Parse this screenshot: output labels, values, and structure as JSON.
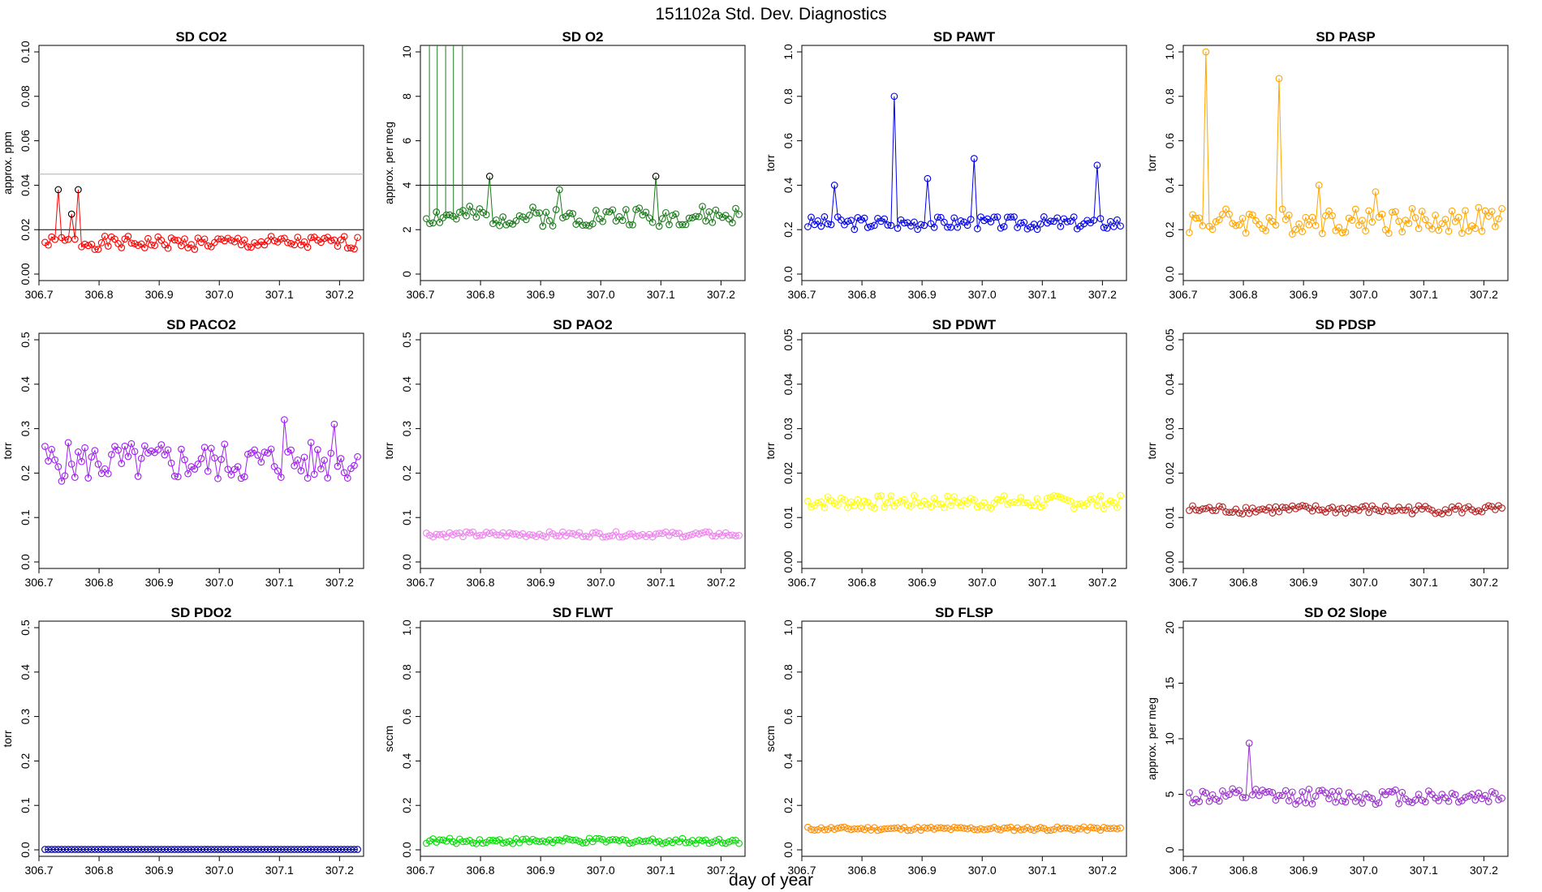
{
  "figure_title": "151102a   Std. Dev. Diagnostics",
  "common_xlabel": "day of year",
  "chart_data": [
    {
      "type": "line",
      "title": "SD CO2",
      "ylabel": "approx. ppm",
      "color": "#ff0000",
      "xlim": [
        306.7,
        307.24
      ],
      "ylim": [
        0,
        0.1
      ],
      "yticks": [
        "0.00",
        "0.02",
        "0.04",
        "0.06",
        "0.08",
        "0.10"
      ],
      "xticks": [
        "306.7",
        "306.8",
        "306.9",
        "307.0",
        "307.1",
        "307.2"
      ],
      "hlines": [
        {
          "y": 0.02,
          "color": "#000000"
        },
        {
          "y": 0.045,
          "color": "#b0b0b0"
        }
      ],
      "base": 0.014,
      "amp": 0.003,
      "seed": 1,
      "spikes": [
        {
          "x": 306.73,
          "y": 0.038,
          "color": "#000000"
        },
        {
          "x": 306.755,
          "y": 0.027,
          "color": "#000000"
        },
        {
          "x": 306.768,
          "y": 0.038,
          "color": "#000000"
        }
      ]
    },
    {
      "type": "line",
      "title": "SD O2",
      "ylabel": "approx. per meg",
      "color": "#1a7a1a",
      "xlim": [
        306.7,
        307.24
      ],
      "ylim": [
        0,
        10
      ],
      "yticks": [
        "0",
        "2",
        "4",
        "6",
        "8",
        "10"
      ],
      "xticks": [
        "306.7",
        "306.8",
        "306.9",
        "307.0",
        "307.1",
        "307.2"
      ],
      "hlines": [
        {
          "y": 4,
          "color": "#000000"
        }
      ],
      "base": 2.6,
      "amp": 0.45,
      "seed": 2,
      "offscale": [
        306.715,
        306.728,
        306.742,
        306.755,
        306.77
      ],
      "spikes": [
        {
          "x": 306.813,
          "y": 4.4,
          "color": "#000000"
        },
        {
          "x": 306.93,
          "y": 3.8,
          "color": "#1a7a1a"
        },
        {
          "x": 307.09,
          "y": 4.4,
          "color": "#000000"
        }
      ]
    },
    {
      "type": "line",
      "title": "SD PAWT",
      "ylabel": "torr",
      "color": "#0000ee",
      "xlim": [
        306.7,
        307.24
      ],
      "ylim": [
        0,
        1
      ],
      "yticks": [
        "0.0",
        "0.2",
        "0.4",
        "0.6",
        "0.8",
        "1.0"
      ],
      "xticks": [
        "306.7",
        "306.8",
        "306.9",
        "307.0",
        "307.1",
        "307.2"
      ],
      "hlines": [],
      "base": 0.23,
      "amp": 0.03,
      "seed": 3,
      "spikes": [
        {
          "x": 306.752,
          "y": 0.4
        },
        {
          "x": 306.855,
          "y": 0.8
        },
        {
          "x": 306.91,
          "y": 0.43
        },
        {
          "x": 306.987,
          "y": 0.52
        },
        {
          "x": 307.192,
          "y": 0.49
        }
      ]
    },
    {
      "type": "line",
      "title": "SD PASP",
      "ylabel": "torr",
      "color": "#ffa500",
      "xlim": [
        306.7,
        307.24
      ],
      "ylim": [
        0,
        1
      ],
      "yticks": [
        "0.0",
        "0.2",
        "0.4",
        "0.6",
        "0.8",
        "1.0"
      ],
      "xticks": [
        "306.7",
        "306.8",
        "306.9",
        "307.0",
        "307.1",
        "307.2"
      ],
      "hlines": [],
      "base": 0.24,
      "amp": 0.06,
      "seed": 4,
      "spikes": [
        {
          "x": 306.735,
          "y": 1.0
        },
        {
          "x": 306.862,
          "y": 0.88
        },
        {
          "x": 306.925,
          "y": 0.4
        },
        {
          "x": 307.018,
          "y": 0.37
        }
      ]
    },
    {
      "type": "line",
      "title": "SD PACO2",
      "ylabel": "torr",
      "color": "#a020f0",
      "xlim": [
        306.7,
        307.24
      ],
      "ylim": [
        0,
        0.5
      ],
      "yticks": [
        "0.0",
        "0.1",
        "0.2",
        "0.3",
        "0.4",
        "0.5"
      ],
      "xticks": [
        "306.7",
        "306.8",
        "306.9",
        "307.0",
        "307.1",
        "307.2"
      ],
      "hlines": [],
      "base": 0.225,
      "amp": 0.045,
      "seed": 5,
      "spikes": [
        {
          "x": 307.108,
          "y": 0.32
        },
        {
          "x": 307.193,
          "y": 0.31
        }
      ]
    },
    {
      "type": "line",
      "title": "SD PAO2",
      "ylabel": "torr",
      "color": "#ee82ee",
      "xlim": [
        306.7,
        307.24
      ],
      "ylim": [
        0,
        0.5
      ],
      "yticks": [
        "0.0",
        "0.1",
        "0.2",
        "0.3",
        "0.4",
        "0.5"
      ],
      "xticks": [
        "306.7",
        "306.8",
        "306.9",
        "307.0",
        "307.1",
        "307.2"
      ],
      "hlines": [],
      "base": 0.062,
      "amp": 0.006,
      "seed": 6,
      "spikes": []
    },
    {
      "type": "line",
      "title": "SD PDWT",
      "ylabel": "torr",
      "color": "#ffff00",
      "xlim": [
        306.7,
        307.24
      ],
      "ylim": [
        0,
        0.05
      ],
      "yticks": [
        "0.00",
        "0.01",
        "0.02",
        "0.03",
        "0.04",
        "0.05"
      ],
      "xticks": [
        "306.7",
        "306.8",
        "306.9",
        "307.0",
        "307.1",
        "307.2"
      ],
      "hlines": [],
      "base": 0.0135,
      "amp": 0.0015,
      "seed": 7,
      "spikes": []
    },
    {
      "type": "line",
      "title": "SD PDSP",
      "ylabel": "torr",
      "color": "#b22222",
      "xlim": [
        306.7,
        307.24
      ],
      "ylim": [
        0,
        0.05
      ],
      "yticks": [
        "0.00",
        "0.01",
        "0.02",
        "0.03",
        "0.04",
        "0.05"
      ],
      "xticks": [
        "306.7",
        "306.8",
        "306.9",
        "307.0",
        "307.1",
        "307.2"
      ],
      "hlines": [],
      "base": 0.0118,
      "amp": 0.001,
      "seed": 8,
      "spikes": []
    },
    {
      "type": "line",
      "title": "SD PDO2",
      "ylabel": "torr",
      "color": "#0000b0",
      "xlim": [
        306.7,
        307.24
      ],
      "ylim": [
        0,
        0.5
      ],
      "yticks": [
        "0.0",
        "0.1",
        "0.2",
        "0.3",
        "0.4",
        "0.5"
      ],
      "xticks": [
        "306.7",
        "306.8",
        "306.9",
        "307.0",
        "307.1",
        "307.2"
      ],
      "hlines": [],
      "base": 0.001,
      "amp": 0,
      "seed": 9,
      "spikes": []
    },
    {
      "type": "line",
      "title": "SD FLWT",
      "ylabel": "sccm",
      "color": "#00dd00",
      "xlim": [
        306.7,
        307.24
      ],
      "ylim": [
        0,
        1
      ],
      "yticks": [
        "0.0",
        "0.2",
        "0.4",
        "0.6",
        "0.8",
        "1.0"
      ],
      "xticks": [
        "306.7",
        "306.8",
        "306.9",
        "307.0",
        "307.1",
        "307.2"
      ],
      "hlines": [],
      "base": 0.04,
      "amp": 0.012,
      "seed": 10,
      "spikes": []
    },
    {
      "type": "line",
      "title": "SD FLSP",
      "ylabel": "sccm",
      "color": "#ff8c00",
      "xlim": [
        306.7,
        307.24
      ],
      "ylim": [
        0,
        1
      ],
      "yticks": [
        "0.0",
        "0.2",
        "0.4",
        "0.6",
        "0.8",
        "1.0"
      ],
      "xticks": [
        "306.7",
        "306.8",
        "306.9",
        "307.0",
        "307.1",
        "307.2"
      ],
      "hlines": [],
      "base": 0.095,
      "amp": 0.008,
      "seed": 11,
      "spikes": []
    },
    {
      "type": "line",
      "title": "SD O2 Slope",
      "ylabel": "approx. per meg",
      "color": "#9932cc",
      "xlim": [
        306.7,
        307.24
      ],
      "ylim": [
        0,
        20
      ],
      "yticks": [
        "0",
        "5",
        "10",
        "15",
        "20"
      ],
      "yvals": [
        0,
        5,
        10,
        15,
        20
      ],
      "xticks": [
        "306.7",
        "306.8",
        "306.9",
        "307.0",
        "307.1",
        "307.2"
      ],
      "hlines": [],
      "base": 4.8,
      "amp": 0.7,
      "seed": 12,
      "spikes": [
        {
          "x": 306.812,
          "y": 9.6
        }
      ]
    }
  ]
}
